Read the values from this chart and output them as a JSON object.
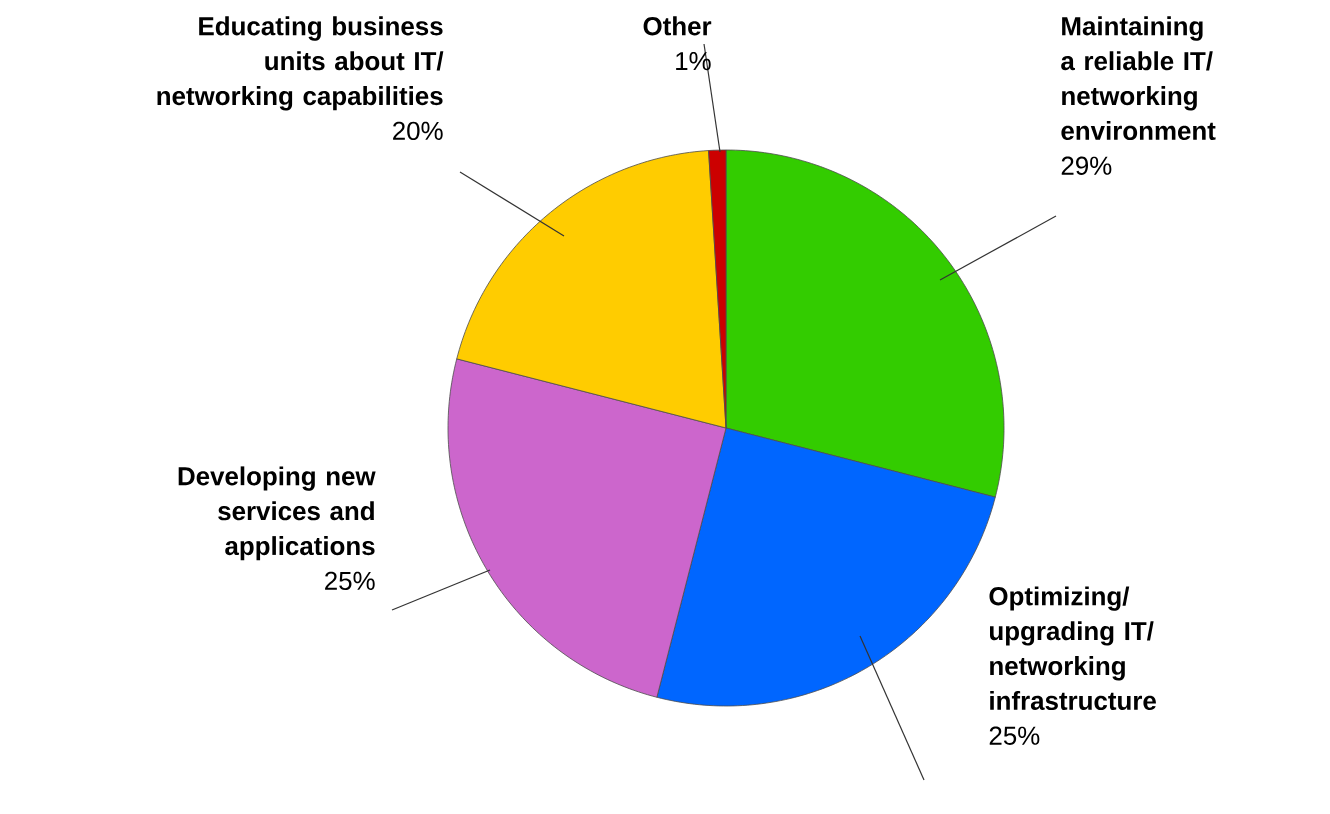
{
  "chart_data": {
    "type": "pie",
    "categories": [
      "Maintaining a reliable IT/ networking environment",
      "Optimizing/ upgrading IT/ networking infrastructure",
      "Developing new services and applications",
      "Educating business units about IT/ networking capabilities",
      "Other"
    ],
    "values": [
      29,
      25,
      25,
      20,
      1
    ],
    "colors": [
      "#33cc00",
      "#0066ff",
      "#cc66cc",
      "#ffcc00",
      "#cc0000"
    ],
    "value_labels": [
      "29%",
      "25%",
      "25%",
      "20%",
      "1%"
    ]
  }
}
